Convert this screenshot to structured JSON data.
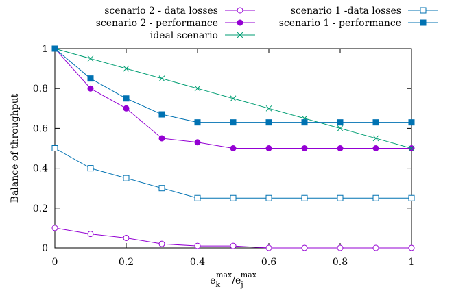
{
  "chart_data": {
    "type": "line",
    "xlabel_base_k": "e",
    "xlabel_sub_k": "k",
    "xlabel_sup_k": "max",
    "xlabel_slash": "/e",
    "xlabel_sub_j": "j",
    "xlabel_sup_j": "max",
    "ylabel": "Balance of throughput",
    "xlim": [
      0,
      1
    ],
    "ylim": [
      0,
      1
    ],
    "xticks": [
      0,
      0.2,
      0.4,
      0.6,
      0.8,
      1
    ],
    "xtick_labels": [
      "0",
      "0.2",
      "0.4",
      "0.6",
      "0.8",
      "1"
    ],
    "yticks": [
      0,
      0.2,
      0.4,
      0.6,
      0.8,
      1
    ],
    "ytick_labels": [
      "0",
      "0.2",
      "0.4",
      "0.6",
      "0.8",
      "1"
    ],
    "grid": false,
    "legend_position": "top",
    "x": [
      0,
      0.1,
      0.2,
      0.3,
      0.4,
      0.5,
      0.6,
      0.7,
      0.8,
      0.9,
      1.0
    ],
    "series": [
      {
        "name": "scenario 2 - data losses",
        "color": "#9400d3",
        "marker": "circle-open",
        "values": [
          0.1,
          0.07,
          0.05,
          0.02,
          0.01,
          0.01,
          0.0,
          0.0,
          0.0,
          0.0,
          0.0
        ]
      },
      {
        "name": "scenario 2 - performance",
        "color": "#9400d3",
        "marker": "circle-filled",
        "values": [
          1.0,
          0.8,
          0.7,
          0.55,
          0.53,
          0.5,
          0.5,
          0.5,
          0.5,
          0.5,
          0.5
        ]
      },
      {
        "name": "ideal scenario",
        "color": "#009e73",
        "marker": "cross",
        "values": [
          1.0,
          0.95,
          0.9,
          0.85,
          0.8,
          0.75,
          0.7,
          0.65,
          0.6,
          0.55,
          0.5
        ]
      },
      {
        "name": "scenario 1 -data losses",
        "color": "#0072b2",
        "marker": "square-open",
        "values": [
          0.5,
          0.4,
          0.35,
          0.3,
          0.25,
          0.25,
          0.25,
          0.25,
          0.25,
          0.25,
          0.25
        ]
      },
      {
        "name": "scenario 1 - performance",
        "color": "#0072b2",
        "marker": "square-filled",
        "values": [
          1.0,
          0.85,
          0.75,
          0.67,
          0.63,
          0.63,
          0.63,
          0.63,
          0.63,
          0.63,
          0.63
        ]
      }
    ]
  }
}
